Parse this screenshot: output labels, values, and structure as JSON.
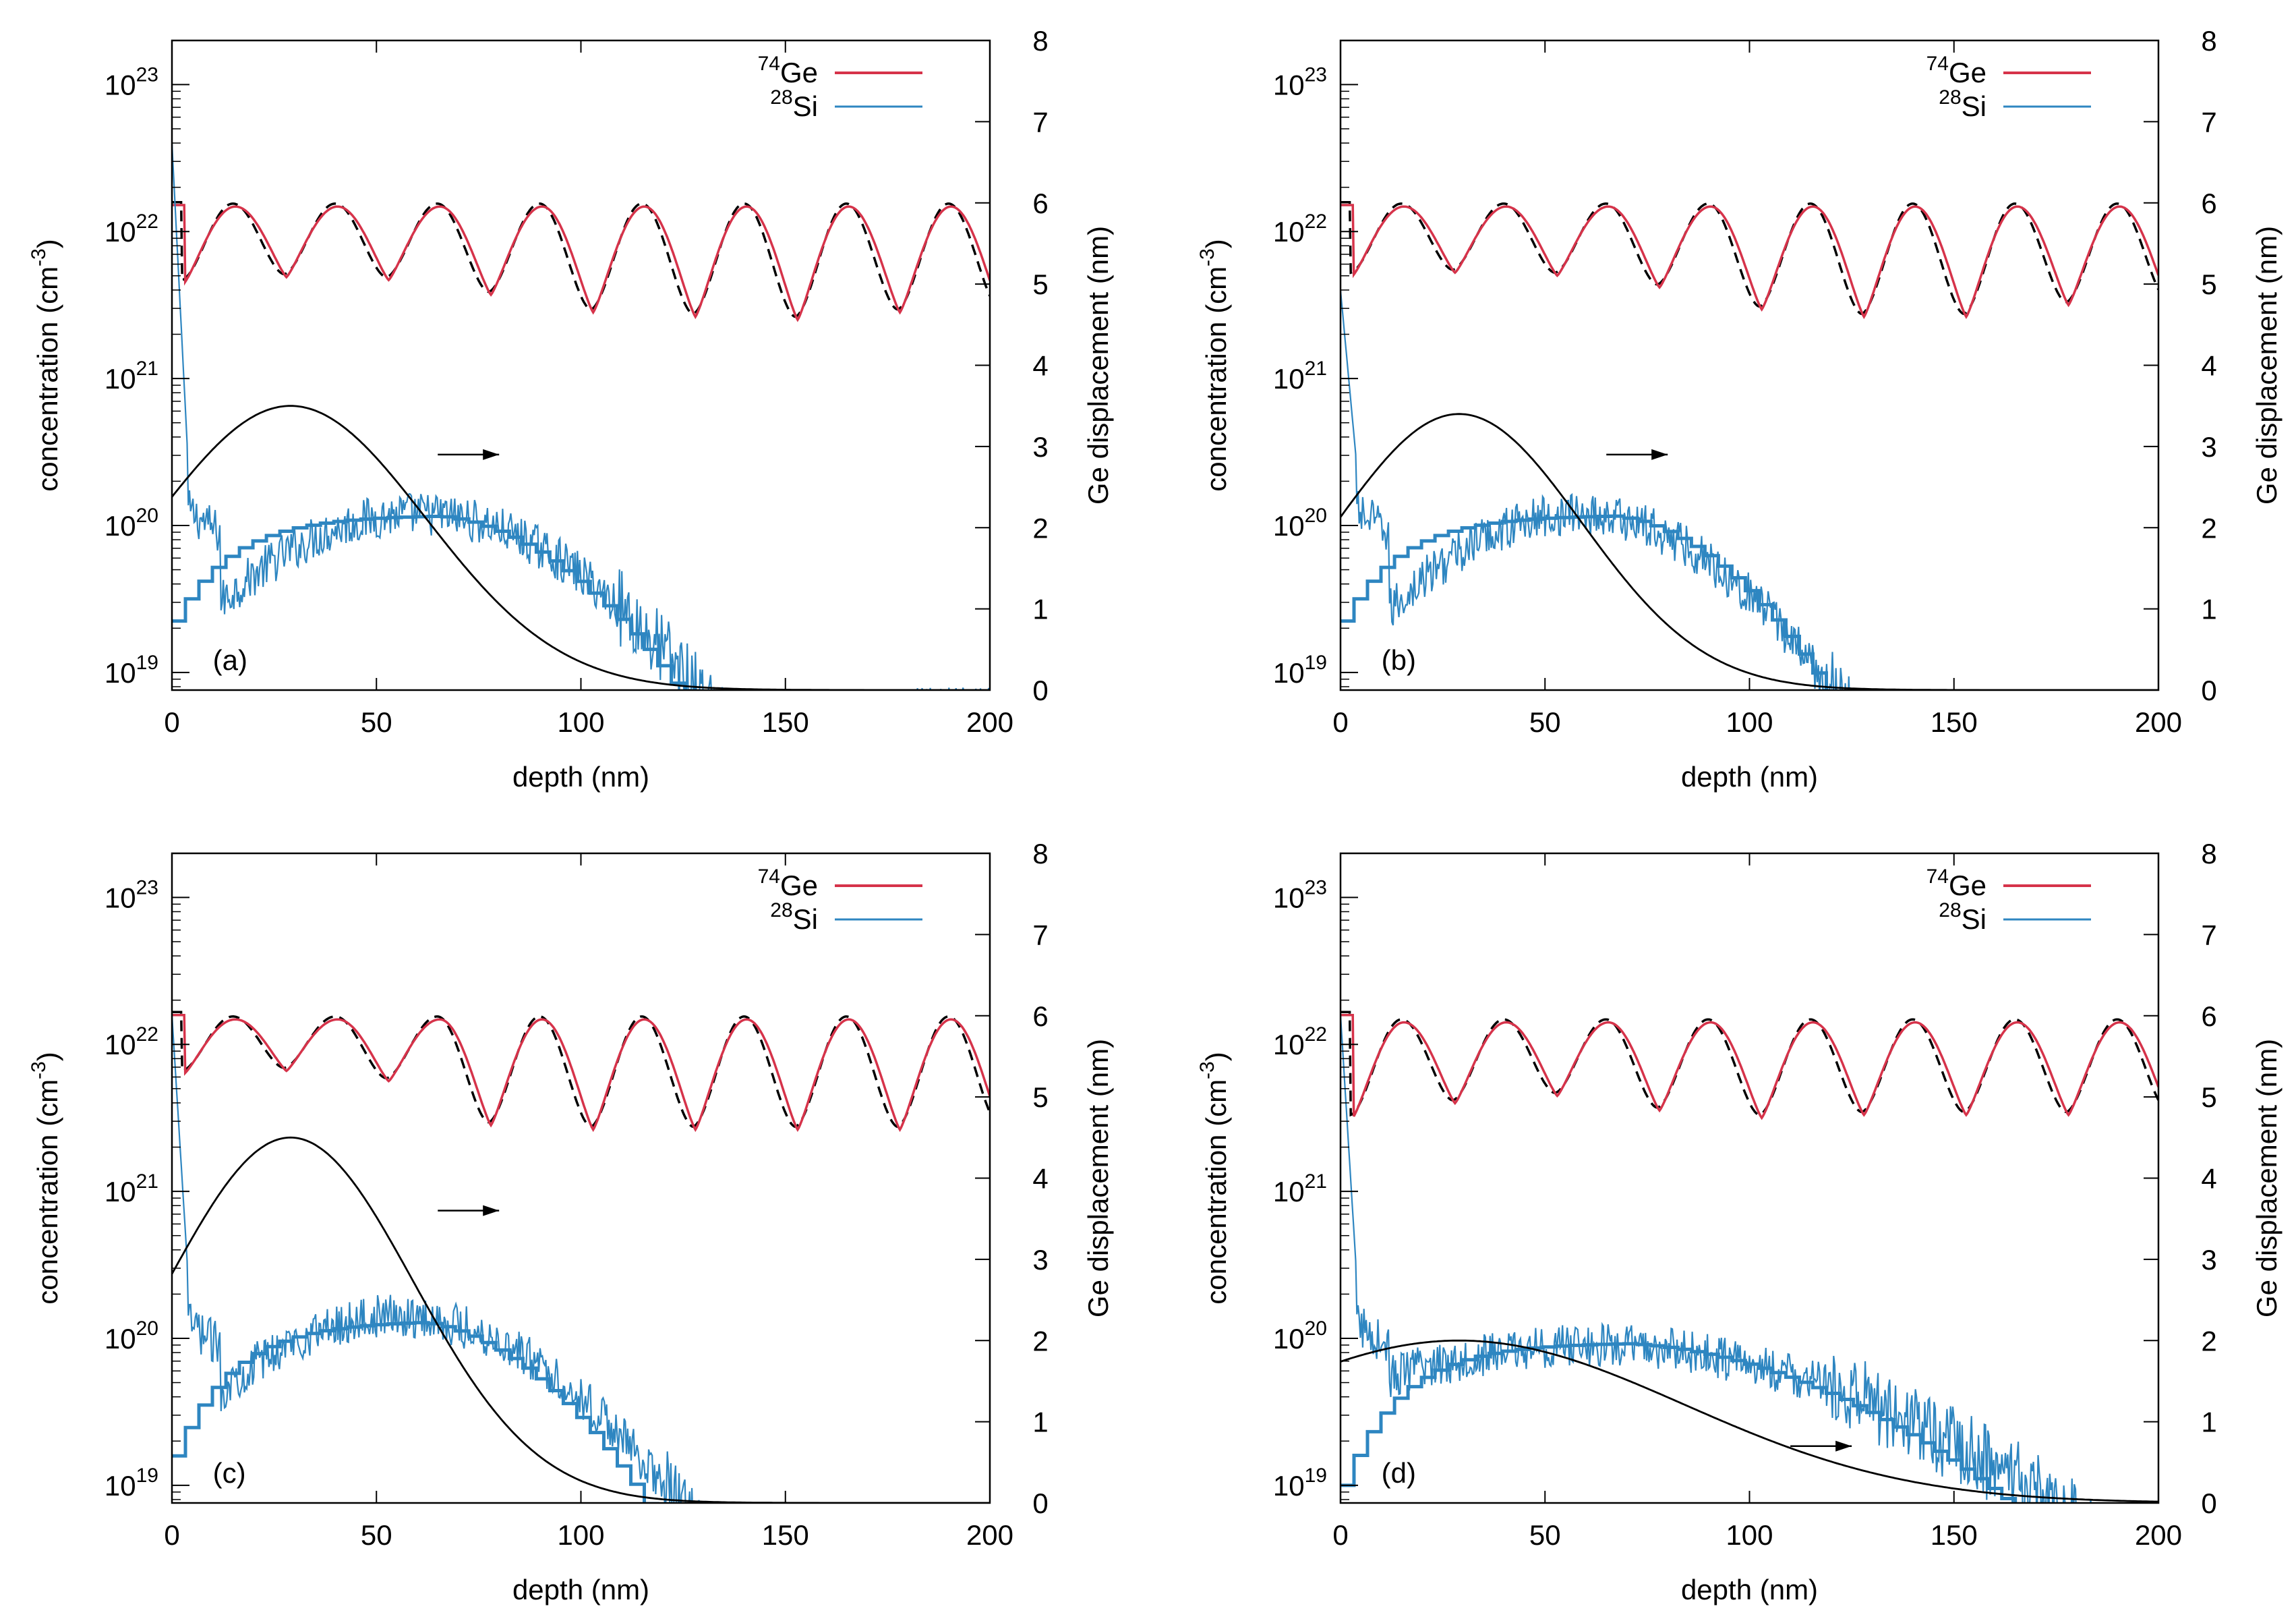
{
  "colors": {
    "ge_line": "#d6334a",
    "si_line": "#2e86c1",
    "fit_dashed": "#000000",
    "displacement": "#000000",
    "axis": "#000000"
  },
  "legend": {
    "ge_mass": "74",
    "ge_elem": "Ge",
    "si_mass": "28",
    "si_elem": "Si"
  },
  "axes": {
    "xlabel": "depth (nm)",
    "ylabel_main": "concentration (cm",
    "ylabel_sup": "-3",
    "ylabel_close": ")",
    "y2label": "Ge displacement (nm)",
    "x_ticks": [
      "0",
      "50",
      "100",
      "150",
      "200"
    ],
    "y_ticks": [
      {
        "base": "10",
        "exp": "19"
      },
      {
        "base": "10",
        "exp": "20"
      },
      {
        "base": "10",
        "exp": "21"
      },
      {
        "base": "10",
        "exp": "22"
      },
      {
        "base": "10",
        "exp": "23"
      }
    ],
    "y2_ticks": [
      "0",
      "1",
      "2",
      "3",
      "4",
      "5",
      "6",
      "7",
      "8"
    ]
  },
  "chart_data": [
    {
      "type": "line",
      "panel_label": "(a)",
      "xlim": [
        0,
        200
      ],
      "ylim_log10": [
        18.88,
        23.3
      ],
      "y2lim": [
        0,
        8
      ],
      "ge": {
        "n_periods": 8,
        "min_log10": [
          21.65,
          21.69,
          21.67,
          21.57,
          21.45,
          21.42,
          21.4,
          21.45
        ],
        "max_log10": 22.17,
        "top_start_log10": 22.18
      },
      "si_surface_peak_log10": 22.6,
      "si_thick": {
        "log10_at_0": 19.35,
        "peak_log10": 20.07,
        "peak_depth_nm": 60,
        "width_nm": 45,
        "end_depth_nm": 135
      },
      "si_noisy": {
        "peak_log10": 20.08,
        "peak_depth_nm": 60,
        "width_nm": 46,
        "end_depth_nm": 182
      },
      "displacement": {
        "peak_nm": 3.5,
        "center_nm": 29,
        "sigma_nm": 33,
        "value_at_0": 2.5
      },
      "arrow": {
        "x_from_nm": 65,
        "x_to_nm": 80,
        "y_nm": 2.9
      }
    },
    {
      "type": "line",
      "panel_label": "(b)",
      "xlim": [
        0,
        200
      ],
      "ylim_log10": [
        18.88,
        23.3
      ],
      "y2lim": [
        0,
        8
      ],
      "ge": {
        "n_periods": 8,
        "min_log10": [
          21.7,
          21.72,
          21.7,
          21.62,
          21.47,
          21.42,
          21.42,
          21.5
        ],
        "max_log10": 22.17,
        "top_start_log10": 22.18
      },
      "si_surface_peak_log10": 21.6,
      "si_thick": {
        "log10_at_0": 19.35,
        "peak_log10": 20.07,
        "peak_depth_nm": 62,
        "width_nm": 40,
        "end_depth_nm": 140
      },
      "si_noisy": {
        "peak_log10": 20.08,
        "peak_depth_nm": 58,
        "width_nm": 42,
        "end_depth_nm": 200
      },
      "displacement": {
        "peak_nm": 3.4,
        "center_nm": 29,
        "sigma_nm": 30,
        "value_at_0": 2.3
      },
      "arrow": {
        "x_from_nm": 65,
        "x_to_nm": 80,
        "y_nm": 2.9
      }
    },
    {
      "type": "line",
      "panel_label": "(c)",
      "xlim": [
        0,
        200
      ],
      "ylim_log10": [
        18.88,
        23.3
      ],
      "y2lim": [
        0,
        8
      ],
      "ge": {
        "n_periods": 8,
        "min_log10": [
          21.8,
          21.82,
          21.75,
          21.45,
          21.42,
          21.42,
          21.42,
          21.42
        ],
        "max_log10": 22.17,
        "top_start_log10": 22.2
      },
      "si_surface_peak_log10": 22.2,
      "si_thick": {
        "log10_at_0": 19.2,
        "peak_log10": 20.12,
        "peak_depth_nm": 55,
        "width_nm": 42,
        "end_depth_nm": 145
      },
      "si_noisy": {
        "peak_log10": 20.15,
        "peak_depth_nm": 55,
        "width_nm": 45,
        "end_depth_nm": 200
      },
      "displacement": {
        "peak_nm": 4.5,
        "center_nm": 29,
        "sigma_nm": 30,
        "value_at_0": 3.1
      },
      "arrow": {
        "x_from_nm": 65,
        "x_to_nm": 80,
        "y_nm": 3.6
      }
    },
    {
      "type": "line",
      "panel_label": "(d)",
      "xlim": [
        0,
        200
      ],
      "ylim_log10": [
        18.88,
        23.3
      ],
      "y2lim": [
        0,
        8
      ],
      "ge": {
        "n_periods": 8,
        "min_log10": [
          21.5,
          21.6,
          21.65,
          21.55,
          21.5,
          21.52,
          21.52,
          21.52
        ],
        "max_log10": 22.15,
        "top_start_log10": 22.2
      },
      "si_surface_peak_log10": 22.2,
      "si_thick": {
        "log10_at_0": 19.0,
        "peak_log10": 19.97,
        "peak_depth_nm": 62,
        "width_nm": 75,
        "end_depth_nm": 200
      },
      "si_noisy": {
        "peak_log10": 19.95,
        "peak_depth_nm": 62,
        "width_nm": 80,
        "end_depth_nm": 200
      },
      "displacement": {
        "peak_nm": 2.0,
        "center_nm": 29,
        "sigma_nm": 55,
        "value_at_0": 1.7
      },
      "arrow": {
        "x_from_nm": 110,
        "x_to_nm": 125,
        "y_nm": 0.7
      }
    }
  ]
}
